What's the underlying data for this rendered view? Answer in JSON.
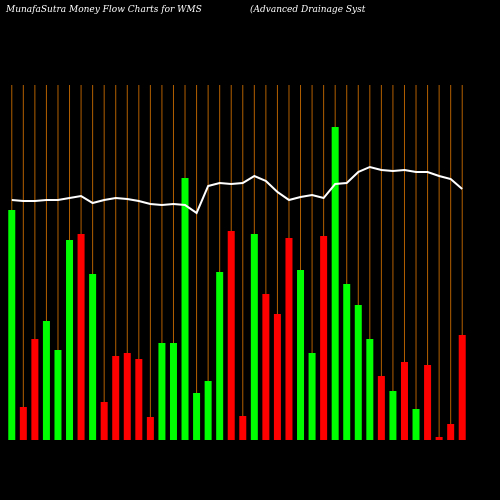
{
  "chart_data": {
    "type": "bar",
    "title": "MunafaSutra  Money Flow  Charts for WMS",
    "subtitle": "(Advanced Drainage   Syst",
    "categories": [
      null,
      null,
      null,
      null,
      null,
      null,
      null,
      null,
      null,
      null,
      null,
      null,
      null,
      null,
      null,
      null,
      null,
      null,
      null,
      null,
      null,
      null,
      null,
      null,
      null,
      null,
      null,
      null,
      null,
      null,
      null,
      null,
      null,
      null,
      null,
      null,
      null,
      null,
      null,
      null
    ],
    "values": [
      230,
      33,
      101,
      119,
      90,
      200,
      206,
      166,
      38,
      84,
      87,
      81,
      23,
      97,
      97,
      262,
      47,
      59,
      168,
      209,
      24,
      206,
      146,
      126,
      202,
      170,
      87,
      204,
      313,
      156,
      135,
      101,
      64,
      49,
      78,
      31,
      75,
      3,
      16,
      105
    ],
    "colors": [
      "#00ff00",
      "#ff0000",
      "#ff0000",
      "#00ff00",
      "#00ff00",
      "#00ff00",
      "#ff0000",
      "#00ff00",
      "#ff0000",
      "#ff0000",
      "#ff0000",
      "#ff0000",
      "#ff0000",
      "#00ff00",
      "#00ff00",
      "#00ff00",
      "#00ff00",
      "#00ff00",
      "#00ff00",
      "#ff0000",
      "#ff0000",
      "#00ff00",
      "#ff0000",
      "#ff0000",
      "#ff0000",
      "#00ff00",
      "#00ff00",
      "#ff0000",
      "#00ff00",
      "#00ff00",
      "#00ff00",
      "#00ff00",
      "#ff0000",
      "#00ff00",
      "#ff0000",
      "#00ff00",
      "#ff0000",
      "#ff0000",
      "#ff0000",
      "#ff0000"
    ],
    "line_values": [
      240,
      239,
      239,
      240,
      240,
      242,
      244,
      237,
      240,
      242,
      241,
      239,
      236,
      235,
      236,
      235,
      227,
      254,
      257,
      256,
      257,
      264,
      259,
      248,
      240,
      243,
      245,
      242,
      256,
      257,
      268,
      273,
      270,
      269,
      270,
      268,
      268,
      264,
      261,
      251
    ],
    "line_color": "#ffffff",
    "grid_color": "#b35f00",
    "ylim": [
      0,
      360
    ]
  }
}
